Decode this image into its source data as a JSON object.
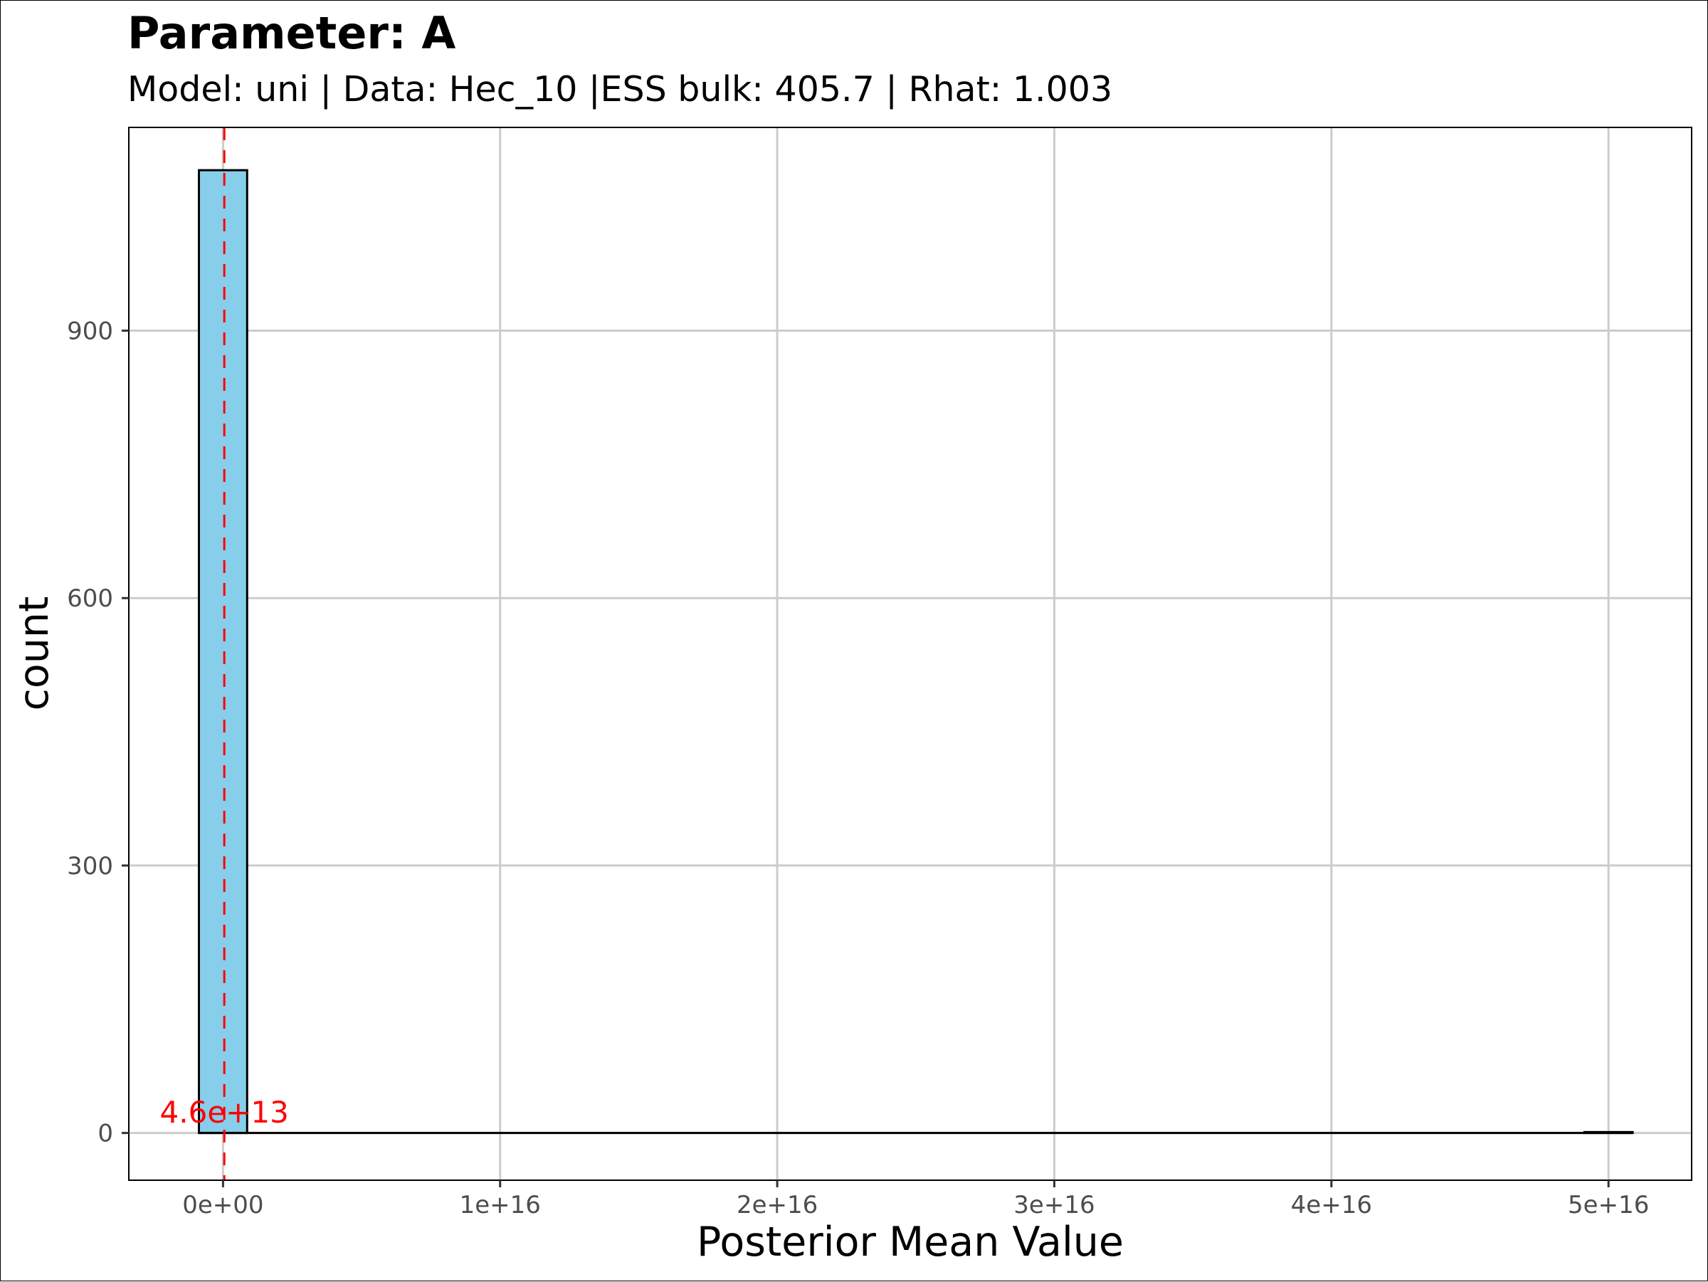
{
  "chart_data": {
    "type": "bar",
    "title": "Parameter: A",
    "subtitle": "Model: uni | Data: Hec_10 |ESS bulk: 405.7 | Rhat: 1.003",
    "xlabel": "Posterior Mean Value",
    "ylabel": "count",
    "xlim": [
      -3400000000000000.0,
      5.3e+16
    ],
    "ylim": [
      -53,
      1128
    ],
    "x_ticks": [
      0,
      1e+16,
      2e+16,
      3e+16,
      4e+16,
      5e+16
    ],
    "x_tick_labels": [
      "0e+00",
      "1e+16",
      "2e+16",
      "3e+16",
      "4e+16",
      "5e+16"
    ],
    "y_ticks": [
      0,
      300,
      600,
      900
    ],
    "y_tick_labels": [
      "0",
      "300",
      "600",
      "900"
    ],
    "grid": true,
    "bin_width": 1740000000000000.0,
    "bins": [
      {
        "x0": -870000000000000.0,
        "x1": 870000000000000.0,
        "count": 1080
      },
      {
        "x0": 4.913e+16,
        "x1": 5.087e+16,
        "count": 1
      }
    ],
    "baseline": {
      "x0": -870000000000000.0,
      "x1": 5.087e+16
    },
    "reference_line": {
      "x": 46000000000000.0,
      "label": "4.6e+13",
      "style": "dashed"
    },
    "colors": {
      "bar_fill": "#87CEEB",
      "bar_stroke": "#000000",
      "reference_line": "#FF0000",
      "grid": "#CCCCCC",
      "tick_text": "#4D4D4D"
    }
  }
}
